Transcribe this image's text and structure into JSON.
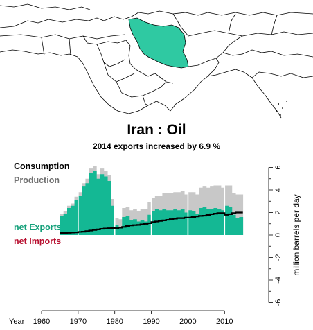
{
  "title": "Iran :  Oil",
  "subtitle": "2014 exports increased by 6.9 %",
  "legend": {
    "consumption": "Consumption",
    "production": "Production",
    "net_exports": "net Exports",
    "net_imports": "net Imports"
  },
  "colors": {
    "production": "#c8c8c8",
    "net_exports": "#14b894",
    "consumption": "#000000",
    "net_imports_label": "#b81030",
    "production_label": "#707070",
    "map_highlight": "#2fc9a2"
  },
  "chart_data": {
    "type": "area",
    "title": "Iran :  Oil",
    "subtitle": "2014 exports increased by 6.9 %",
    "xlabel": "Year",
    "ylabel": "million barrels per day",
    "xlim": [
      1960,
      2014
    ],
    "ylim": [
      -6,
      6
    ],
    "x_ticks": [
      1960,
      1970,
      1980,
      1990,
      2000,
      2010
    ],
    "y_ticks": [
      -6,
      -4,
      -2,
      0,
      2,
      4,
      6
    ],
    "grid": false,
    "series": [
      {
        "name": "Production",
        "x": [
          1965,
          1966,
          1967,
          1968,
          1969,
          1970,
          1971,
          1972,
          1973,
          1974,
          1975,
          1976,
          1977,
          1978,
          1979,
          1980,
          1981,
          1982,
          1983,
          1984,
          1985,
          1986,
          1987,
          1988,
          1989,
          1990,
          1991,
          1992,
          1993,
          1994,
          1995,
          1996,
          1997,
          1998,
          1999,
          2000,
          2001,
          2002,
          2003,
          2004,
          2005,
          2006,
          2007,
          2008,
          2009,
          2010,
          2011,
          2012,
          2013,
          2014
        ],
        "values": [
          1.9,
          2.1,
          2.6,
          2.8,
          3.4,
          3.8,
          4.6,
          5.0,
          5.9,
          6.1,
          5.4,
          5.9,
          5.7,
          5.3,
          3.2,
          1.5,
          1.4,
          2.4,
          2.5,
          2.2,
          2.3,
          2.1,
          2.3,
          2.3,
          2.9,
          3.3,
          3.5,
          3.5,
          3.7,
          3.7,
          3.7,
          3.8,
          3.8,
          3.9,
          3.6,
          3.8,
          3.8,
          3.6,
          4.2,
          4.3,
          4.2,
          4.3,
          4.4,
          4.4,
          4.2,
          4.4,
          4.4,
          3.7,
          3.6,
          3.6
        ]
      },
      {
        "name": "net Exports",
        "x": [
          1965,
          1966,
          1967,
          1968,
          1969,
          1970,
          1971,
          1972,
          1973,
          1974,
          1975,
          1976,
          1977,
          1978,
          1979,
          1980,
          1981,
          1982,
          1983,
          1984,
          1985,
          1986,
          1987,
          1988,
          1989,
          1990,
          1991,
          1992,
          1993,
          1994,
          1995,
          1996,
          1997,
          1998,
          1999,
          2000,
          2001,
          2002,
          2003,
          2004,
          2005,
          2006,
          2007,
          2008,
          2009,
          2010,
          2011,
          2012,
          2013,
          2014
        ],
        "values": [
          1.7,
          1.9,
          2.4,
          2.6,
          3.1,
          3.5,
          4.3,
          4.6,
          5.5,
          5.7,
          5.0,
          5.4,
          5.2,
          4.8,
          2.6,
          0.9,
          0.7,
          1.6,
          1.7,
          1.3,
          1.4,
          1.2,
          1.3,
          1.2,
          1.8,
          2.1,
          2.3,
          2.2,
          2.3,
          2.2,
          2.2,
          2.3,
          2.2,
          2.3,
          2.0,
          2.2,
          2.1,
          1.9,
          2.4,
          2.5,
          2.3,
          2.3,
          2.4,
          2.3,
          2.2,
          2.6,
          2.5,
          1.8,
          1.5,
          1.6
        ]
      },
      {
        "name": "Consumption",
        "x": [
          1965,
          1966,
          1967,
          1968,
          1969,
          1970,
          1971,
          1972,
          1973,
          1974,
          1975,
          1976,
          1977,
          1978,
          1979,
          1980,
          1981,
          1982,
          1983,
          1984,
          1985,
          1986,
          1987,
          1988,
          1989,
          1990,
          1991,
          1992,
          1993,
          1994,
          1995,
          1996,
          1997,
          1998,
          1999,
          2000,
          2001,
          2002,
          2003,
          2004,
          2005,
          2006,
          2007,
          2008,
          2009,
          2010,
          2011,
          2012,
          2013,
          2014
        ],
        "values": [
          0.18,
          0.19,
          0.2,
          0.22,
          0.24,
          0.28,
          0.3,
          0.35,
          0.4,
          0.45,
          0.5,
          0.55,
          0.58,
          0.6,
          0.62,
          0.6,
          0.65,
          0.72,
          0.8,
          0.85,
          0.88,
          0.9,
          0.95,
          1.0,
          1.05,
          1.15,
          1.2,
          1.25,
          1.3,
          1.35,
          1.4,
          1.45,
          1.5,
          1.5,
          1.55,
          1.55,
          1.6,
          1.65,
          1.7,
          1.72,
          1.78,
          1.85,
          1.9,
          1.95,
          1.95,
          1.8,
          1.85,
          1.95,
          2.0,
          2.0
        ]
      }
    ]
  }
}
